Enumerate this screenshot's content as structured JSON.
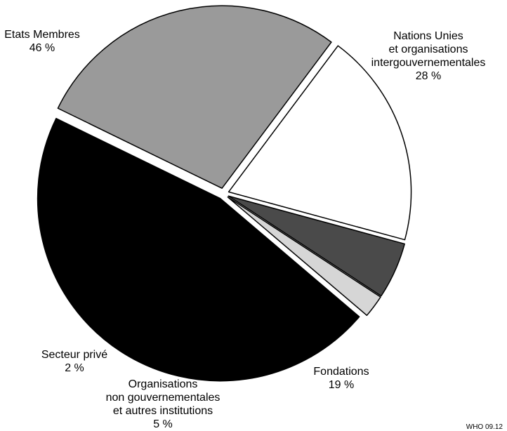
{
  "chart_data": {
    "type": "pie",
    "slices": [
      {
        "label_lines": [
          "Nations Unies",
          "et organisations",
          "intergouvernementales"
        ],
        "value_label": "28 %",
        "value": 28,
        "color": "#9a9a9a"
      },
      {
        "label_lines": [
          "Fondations"
        ],
        "value_label": "19 %",
        "value": 19,
        "color": "#ffffff"
      },
      {
        "label_lines": [
          "Organisations",
          "non gouvernementales",
          "et autres institutions"
        ],
        "value_label": "5 %",
        "value": 5,
        "color": "#4a4a4a"
      },
      {
        "label_lines": [
          "Secteur privé"
        ],
        "value_label": "2 %",
        "value": 2,
        "color": "#d6d6d6"
      },
      {
        "label_lines": [
          "Etats Membres"
        ],
        "value_label": "46 %",
        "value": 46,
        "color": "#000000"
      }
    ],
    "exploded": true,
    "stroke_color": "#000000"
  },
  "footer": {
    "code": "WHO 09.12"
  }
}
